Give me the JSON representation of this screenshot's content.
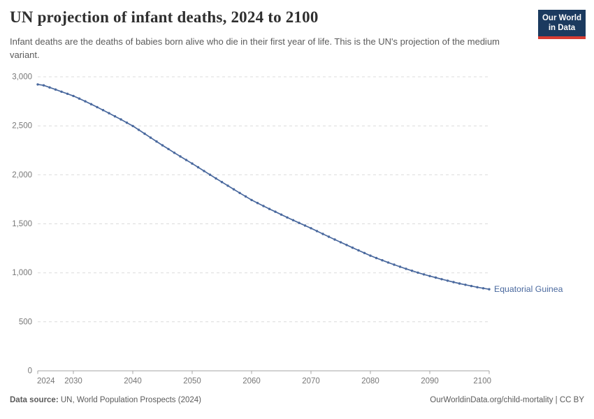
{
  "header": {
    "title": "UN projection of infant deaths, 2024 to 2100",
    "subtitle": "Infant deaths are the deaths of babies born alive who die in their first year of life. This is the UN's projection of the medium variant.",
    "logo": {
      "line1": "Our World",
      "line2": "in Data"
    }
  },
  "chart_data": {
    "type": "line",
    "title": "UN projection of infant deaths, 2024 to 2100",
    "xlabel": "",
    "ylabel": "",
    "ylim": [
      0,
      3000
    ],
    "yticks": [
      0,
      500,
      1000,
      1500,
      2000,
      2500,
      3000
    ],
    "xticks": [
      2024,
      2030,
      2040,
      2050,
      2060,
      2070,
      2080,
      2090,
      2100
    ],
    "grid": "horizontal-dashed",
    "legend_position": "end-of-line-label",
    "marker": "circle-every-year",
    "x": [
      2024,
      2025,
      2026,
      2027,
      2028,
      2029,
      2030,
      2031,
      2032,
      2033,
      2034,
      2035,
      2036,
      2037,
      2038,
      2039,
      2040,
      2041,
      2042,
      2043,
      2044,
      2045,
      2046,
      2047,
      2048,
      2049,
      2050,
      2051,
      2052,
      2053,
      2054,
      2055,
      2056,
      2057,
      2058,
      2059,
      2060,
      2061,
      2062,
      2063,
      2064,
      2065,
      2066,
      2067,
      2068,
      2069,
      2070,
      2071,
      2072,
      2073,
      2074,
      2075,
      2076,
      2077,
      2078,
      2079,
      2080,
      2081,
      2082,
      2083,
      2084,
      2085,
      2086,
      2087,
      2088,
      2089,
      2090,
      2091,
      2092,
      2093,
      2094,
      2095,
      2096,
      2097,
      2098,
      2099,
      2100
    ],
    "series": [
      {
        "name": "Equatorial Guinea",
        "color": "#4a699e",
        "values": [
          2922,
          2913,
          2892,
          2870,
          2848,
          2827,
          2805,
          2778,
          2750,
          2721,
          2691,
          2660,
          2629,
          2597,
          2565,
          2532,
          2498,
          2459,
          2419,
          2379,
          2340,
          2301,
          2263,
          2225,
          2188,
          2151,
          2115,
          2077,
          2039,
          2001,
          1963,
          1926,
          1889,
          1852,
          1815,
          1779,
          1743,
          1712,
          1682,
          1652,
          1623,
          1594,
          1565,
          1537,
          1509,
          1482,
          1455,
          1426,
          1397,
          1368,
          1340,
          1312,
          1284,
          1256,
          1229,
          1202,
          1175,
          1151,
          1128,
          1105,
          1083,
          1062,
          1041,
          1021,
          1002,
          984,
          967,
          951,
          935,
          920,
          905,
          891,
          878,
          865,
          853,
          842,
          832
        ]
      }
    ]
  },
  "footer": {
    "source_label": "Data source:",
    "source_text": " UN, World Population Prospects (2024)",
    "credit": "OurWorldinData.org/child-mortality | CC BY"
  },
  "colors": {
    "line": "#4a699e",
    "grid": "#dcdcdc",
    "axis": "#a6a6a6",
    "tick_label": "#777777",
    "title": "#2f2f2f",
    "subtitle": "#5b5b5b",
    "footer": "#5b5b5b",
    "logo_bg": "#1b3a5f",
    "logo_accent": "#d73c32"
  }
}
